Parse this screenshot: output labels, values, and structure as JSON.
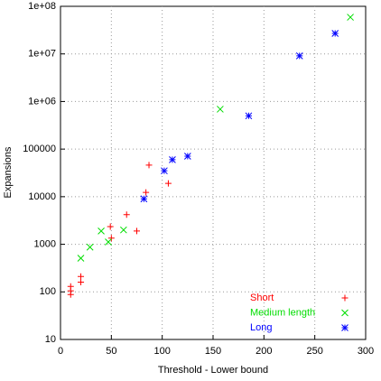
{
  "chart_data": {
    "type": "scatter",
    "xlabel": "Threshold - Lower bound",
    "ylabel": "Expansions",
    "xlim": [
      0,
      300
    ],
    "xticks": [
      0,
      50,
      100,
      150,
      200,
      250,
      300
    ],
    "ylim": [
      10,
      100000000
    ],
    "ylog": true,
    "yticks": [
      10,
      100,
      1000,
      10000,
      100000,
      {
        "value": 1000000,
        "label": "1e+06"
      },
      {
        "value": 10000000,
        "label": "1e+07"
      },
      {
        "value": 100000000,
        "label": "1e+08"
      }
    ],
    "grid": true,
    "legend": "lower right",
    "series": [
      {
        "name": "Short",
        "color": "#ff0000",
        "marker": "plus",
        "x": [
          10,
          10,
          10,
          20,
          20,
          49,
          50,
          65,
          75,
          84,
          87,
          106
        ],
        "values": [
          130,
          105,
          88,
          160,
          210,
          2350,
          1350,
          4200,
          1900,
          12300,
          46000,
          19000
        ]
      },
      {
        "name": "Medium length",
        "color": "#00dd00",
        "marker": "cross",
        "x": [
          20,
          29,
          40,
          47,
          62,
          157,
          285
        ],
        "values": [
          510,
          870,
          1900,
          1120,
          2000,
          690000,
          59000000
        ]
      },
      {
        "name": "Long",
        "color": "#0000ff",
        "marker": "star",
        "x": [
          82,
          102,
          110,
          125,
          185,
          235,
          270
        ],
        "values": [
          9000,
          35000,
          60000,
          71000,
          500000,
          9100000,
          27000000
        ]
      }
    ]
  }
}
